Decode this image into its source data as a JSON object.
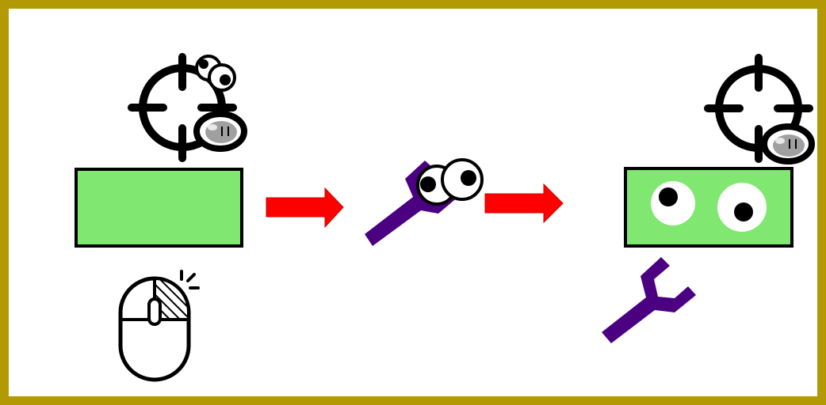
{
  "colors": {
    "frame": "#B39A05",
    "background": "#FFFFFF",
    "block": "#80E870",
    "wrench": "#4B0082",
    "arrow": "#FF0000",
    "outline": "#000000",
    "eye_white": "#FFFFFF",
    "eye_pupil": "#000000",
    "mouse_button_fill": "#FFFFFF",
    "speech_gray": "#A0A0A0"
  },
  "icons": {
    "crosshair": "crosshair-icon",
    "mouse": "mouse-click-icon",
    "wrench": "wrench-icon",
    "arrow": "right-arrow-icon",
    "eyes": "googly-eyes-icon",
    "pause_bubble": "pause-bubble-icon"
  },
  "steps": [
    {
      "id": "start",
      "block": "green-block",
      "cursor": "crosshair-icon",
      "input": "mouse-click-icon"
    },
    {
      "id": "grab",
      "tool": "wrench-icon",
      "eyes": "googly-eyes-icon"
    },
    {
      "id": "result",
      "block": "green-block",
      "eyes": "googly-eyes-icon",
      "tool": "wrench-icon"
    }
  ]
}
